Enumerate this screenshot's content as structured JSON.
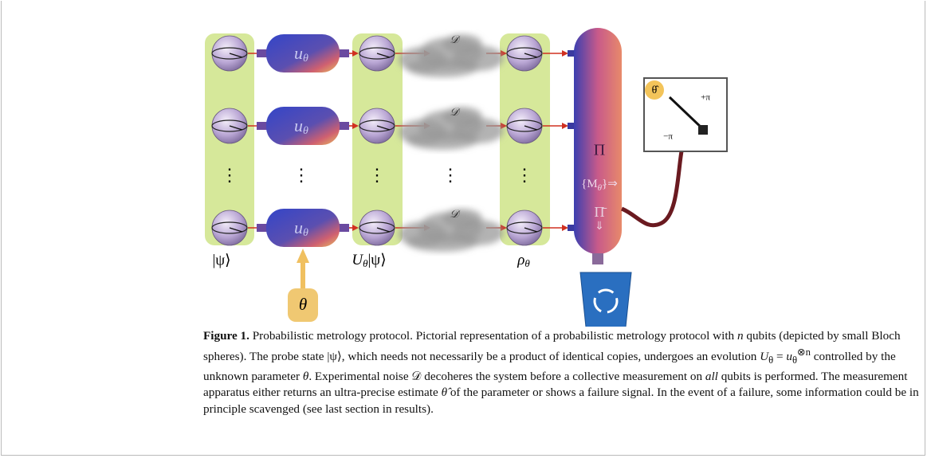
{
  "figure": {
    "input_state": "|ψ⟩",
    "gates": [
      {
        "base": "u",
        "sub": "θ"
      },
      {
        "base": "u",
        "sub": "θ"
      },
      {
        "base": "u",
        "sub": "θ"
      }
    ],
    "evolved_state": {
      "base": "U",
      "sub": "θ",
      "ket": "|ψ⟩"
    },
    "noise_labels": [
      "𝒟",
      "𝒟",
      "𝒟"
    ],
    "noisy_state": {
      "base": "ρ",
      "sub": "θ"
    },
    "dots": [
      "⋮",
      "⋮",
      "⋮",
      "⋮",
      "⋮"
    ],
    "parameter": "θ",
    "measurement": {
      "success": "Π",
      "outcomes": {
        "open": "{M",
        "sub": "θ̂",
        "close": "}",
        "arrow": "⇒"
      },
      "failure": "Π̄",
      "failure_arrow": "⇓"
    },
    "meter": {
      "estimate": "θ̂",
      "plus": "+π",
      "minus": "−π"
    }
  },
  "caption": {
    "label": "Figure 1.",
    "parts": [
      " Probabilistic metrology protocol. Pictorial representation of a probabilistic metrology protocol with ",
      "n",
      " qubits (depicted by small Bloch spheres). The probe state |ψ⟩, which needs not necessarily be a product of identical copies, undergoes an evolution ",
      "U",
      "θ",
      " = ",
      "u",
      "θ",
      "⊗n",
      " controlled by the unknown parameter ",
      "θ",
      ". Experimental noise ",
      "𝒟",
      " decoheres the system before a collective measurement on ",
      "all",
      " qubits is performed. The measurement apparatus either returns an ultra-precise estimate ",
      "θ̂",
      " of the parameter or shows a failure signal. In the event of a failure, some information could be in principle scavenged (see last section in results)."
    ]
  }
}
